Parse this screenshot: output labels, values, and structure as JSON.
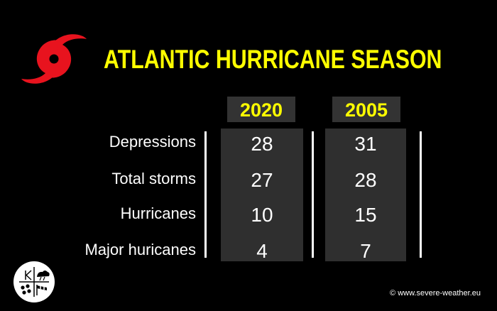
{
  "title": "ATLANTIC HURRICANE SEASON",
  "logo_icon": "hurricane-symbol-icon",
  "columns": [
    "2020",
    "2005"
  ],
  "rows": [
    {
      "label": "Depressions",
      "values": [
        "28",
        "31"
      ]
    },
    {
      "label": "Total storms",
      "values": [
        "27",
        "28"
      ]
    },
    {
      "label": "Hurricanes",
      "values": [
        "10",
        "15"
      ]
    },
    {
      "label": "Major huricanes",
      "values": [
        "4",
        "7"
      ]
    }
  ],
  "badge_icon": "weather-badge-icon",
  "copyright": "© www.severe-weather.eu",
  "colors": {
    "background": "#000000",
    "title": "#ffff00",
    "logo": "#e8131e",
    "cell_background": "#2f2f2f",
    "text": "#ffffff"
  }
}
